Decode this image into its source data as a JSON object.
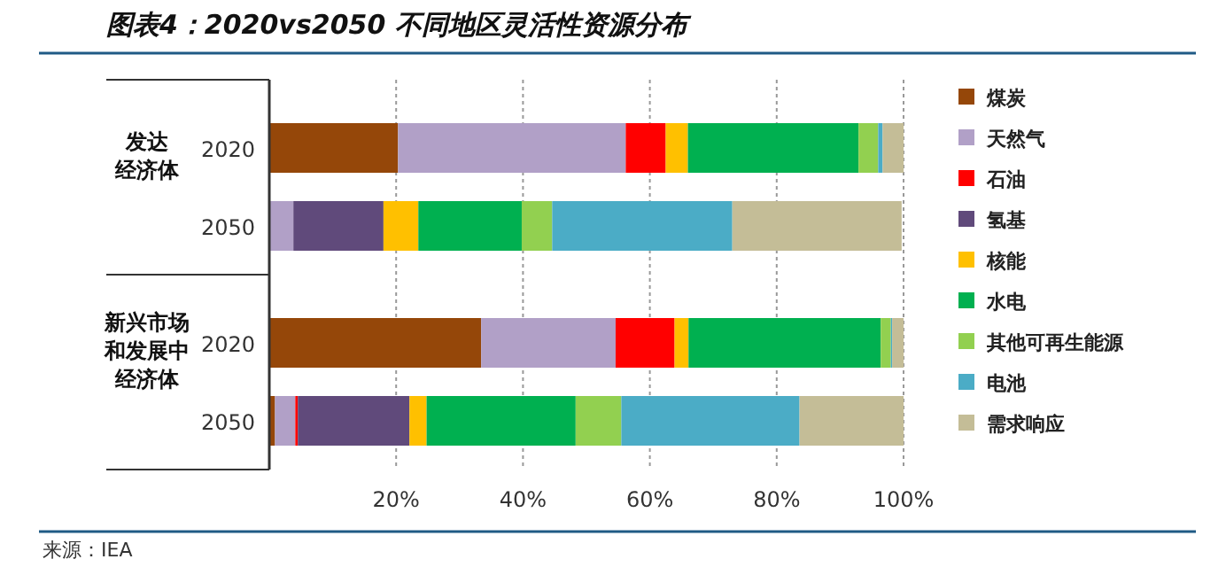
{
  "chart_data": {
    "type": "bar",
    "orientation": "horizontal",
    "stacked": true,
    "title": "图表4：2020vs2050 不同地区灵活性资源分布",
    "categories": [
      "2020",
      "2050",
      "2020",
      "2050"
    ],
    "annotations": [
      "发达",
      "经济体",
      "新兴市场",
      "和发展中",
      "经济体",
      "来源：IEA"
    ],
    "series": [
      {
        "name": "煤炭",
        "color": "#954709",
        "values": [
          20.3,
          null,
          33.4,
          0.9
        ]
      },
      {
        "name": "天然气",
        "color": "#b1a0c7",
        "values": [
          35.9,
          3.8,
          21.2,
          3.2
        ]
      },
      {
        "name": "石油",
        "color": "#ff0000",
        "values": [
          6.3,
          0.0,
          9.3,
          0.4
        ]
      },
      {
        "name": "氢基",
        "color": "#604a7b",
        "values": [
          0.0,
          14.2,
          0.0,
          17.6
        ]
      },
      {
        "name": "核能",
        "color": "#ffc000",
        "values": [
          3.5,
          5.5,
          2.2,
          2.7
        ]
      },
      {
        "name": "水电",
        "color": "#00b050",
        "values": [
          26.9,
          16.3,
          30.3,
          23.5
        ]
      },
      {
        "name": "其他可再生能源",
        "color": "#92d050",
        "values": [
          3.1,
          4.8,
          1.6,
          7.2
        ]
      },
      {
        "name": "电池",
        "color": "#4bacc6",
        "values": [
          0.7,
          28.4,
          0.2,
          28.1
        ]
      },
      {
        "name": "需求响应",
        "color": "#c4bd97",
        "values": [
          3.3,
          26.7,
          1.8,
          16.4
        ]
      }
    ],
    "xlim": [
      0,
      100
    ],
    "xticks": [
      {
        "value": 20,
        "label": "20%"
      },
      {
        "value": 40,
        "label": "40%"
      },
      {
        "value": 60,
        "label": "60%"
      },
      {
        "value": 80,
        "label": "80%"
      },
      {
        "value": 100,
        "label": "100%"
      }
    ],
    "grid": "x",
    "legend": "right"
  }
}
